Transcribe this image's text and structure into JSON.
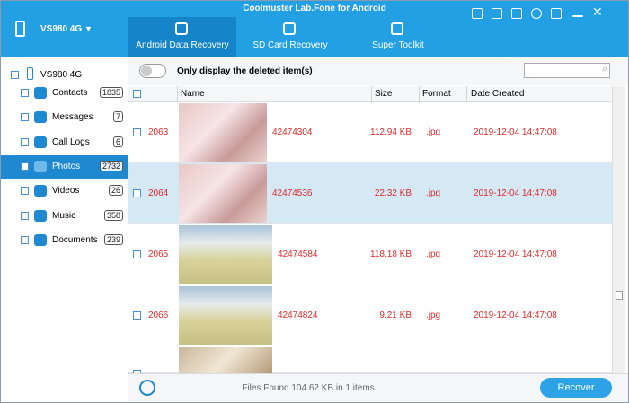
{
  "window": {
    "title": "Coolmuster Lab.Fone for Android"
  },
  "device": {
    "name": "VS980 4G"
  },
  "tabs": [
    "Android Data Recovery",
    "SD Card Recovery",
    "Super Toolkit"
  ],
  "sidebar": {
    "device": "VS980 4G",
    "items": [
      {
        "label": "Contacts",
        "count": "1835"
      },
      {
        "label": "Messages",
        "count": "7"
      },
      {
        "label": "Call Logs",
        "count": "6"
      },
      {
        "label": "Photos",
        "count": "2732"
      },
      {
        "label": "Videos",
        "count": "26"
      },
      {
        "label": "Music",
        "count": "358"
      },
      {
        "label": "Documents",
        "count": "239"
      }
    ]
  },
  "toolbar": {
    "toggle_label": "Only display the deleted item(s)"
  },
  "table": {
    "columns": [
      "Name",
      "Size",
      "Format",
      "Date Created"
    ],
    "rows": [
      [
        "2063",
        "42474304",
        "112.94 KB",
        ".jpg",
        "2019-12-04 14:47:08"
      ],
      [
        "2064",
        "42474536",
        "22.32 KB",
        ".jpg",
        "2019-12-04 14:47:08"
      ],
      [
        "2065",
        "42474584",
        "118.18 KB",
        ".jpg",
        "2019-12-04 14:47:08"
      ],
      [
        "2066",
        "42474824",
        "9.21 KB",
        ".jpg",
        "2019-12-04 14:47:08"
      ]
    ]
  },
  "footer": {
    "status": "Files Found 104.62 KB in 1 items",
    "button": "Recover"
  }
}
